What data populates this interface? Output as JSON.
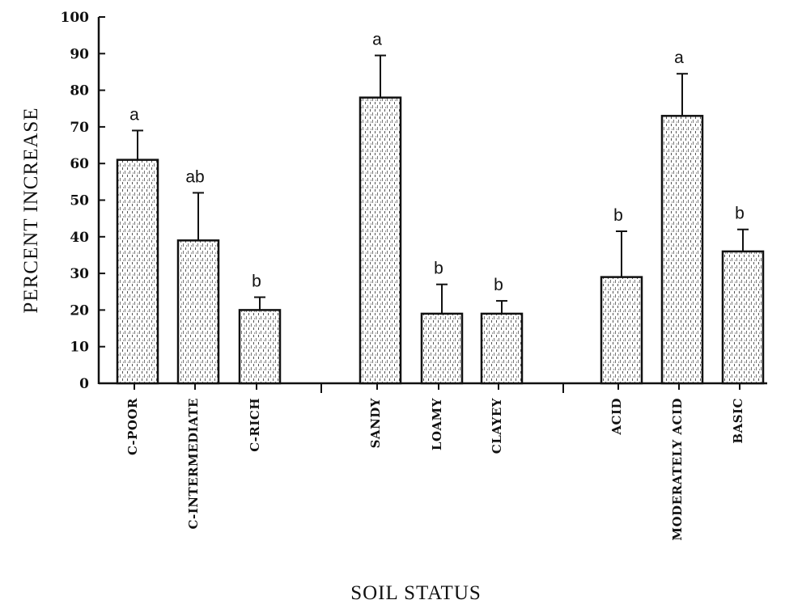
{
  "chart_data": {
    "type": "bar",
    "xlabel": "SOIL STATUS",
    "ylabel": "PERCENT INCREASE",
    "ylim": [
      0,
      100
    ],
    "yticks": [
      0,
      10,
      20,
      30,
      40,
      50,
      60,
      70,
      80,
      90,
      100
    ],
    "groups": [
      {
        "categories": [
          "C-POOR",
          "C-INTERMEDIATE",
          "C-RICH"
        ],
        "values": [
          61,
          39,
          20
        ],
        "errors": [
          8,
          13,
          3.5
        ],
        "significance": [
          "a",
          "ab",
          "b"
        ]
      },
      {
        "categories": [
          "SANDY",
          "LOAMY",
          "CLAYEY"
        ],
        "values": [
          78,
          19,
          19
        ],
        "errors": [
          11.5,
          8,
          3.5
        ],
        "significance": [
          "a",
          "b",
          "b"
        ]
      },
      {
        "categories": [
          "ACID",
          "MODERATELY ACID",
          "BASIC"
        ],
        "values": [
          29,
          73,
          36
        ],
        "errors": [
          12.5,
          11.5,
          6
        ],
        "significance": [
          "b",
          "a",
          "b"
        ]
      }
    ],
    "legend": "none",
    "grid": false
  }
}
